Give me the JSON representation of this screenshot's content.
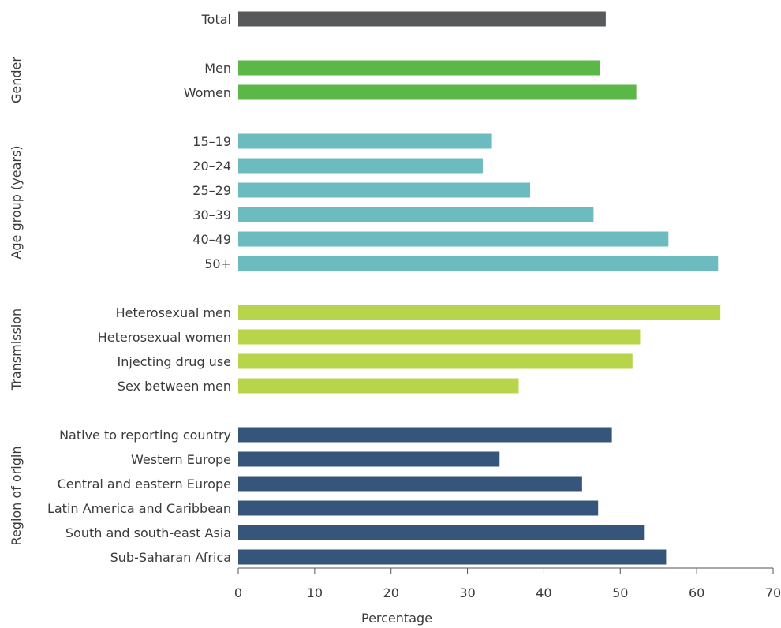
{
  "chart_data": {
    "type": "bar",
    "orientation": "horizontal",
    "xlabel": "Percentage",
    "xlim": [
      0,
      70
    ],
    "xticks": [
      "0",
      "10",
      "20",
      "30",
      "40",
      "50",
      "60",
      "70"
    ],
    "grid": false,
    "legend": "none",
    "colors": {
      "total": "#58595b",
      "gender": "#5ab748",
      "age": "#6bbbbf",
      "transmission": "#b8d44b",
      "region": "#36557a"
    },
    "groups": [
      {
        "name": "",
        "color_key": "total",
        "categories": [
          "Total"
        ],
        "values": [
          48.1
        ]
      },
      {
        "name": "Gender",
        "color_key": "gender",
        "categories": [
          "Men",
          "Women"
        ],
        "values": [
          47.3,
          52.1
        ]
      },
      {
        "name": "Age group (years)",
        "color_key": "age",
        "categories": [
          "15–19",
          "20–24",
          "25–29",
          "30–39",
          "40–49",
          "50+"
        ],
        "values": [
          33.2,
          32.0,
          38.2,
          46.5,
          56.3,
          62.8
        ]
      },
      {
        "name": "Transmission",
        "color_key": "transmission",
        "categories": [
          "Heterosexual men",
          "Heterosexual women",
          "Injecting drug use",
          "Sex between men"
        ],
        "values": [
          63.1,
          52.6,
          51.6,
          36.7
        ]
      },
      {
        "name": "Region of origin",
        "color_key": "region",
        "categories": [
          "Native to reporting country",
          "Western Europe",
          "Central and eastern Europe",
          "Latin America and Caribbean",
          "South and south-east Asia",
          "Sub-Saharan Africa"
        ],
        "values": [
          48.9,
          34.2,
          45.0,
          47.1,
          53.1,
          56.0
        ]
      }
    ]
  }
}
